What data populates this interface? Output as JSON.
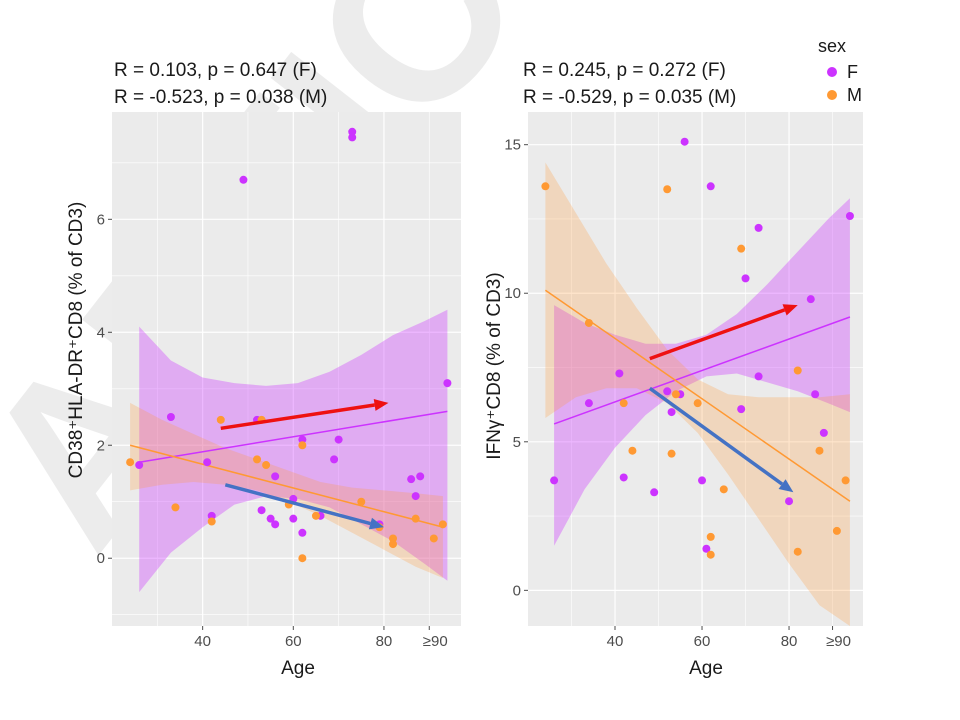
{
  "chart_data": [
    {
      "type": "scatter",
      "title_lines": [
        "R = 0.103, p = 0.647 (F)",
        "R = -0.523, p = 0.038 (M)"
      ],
      "xlabel": "Age",
      "ylabel": "CD38⁺HLA-DR⁺CD8 (% of CD3)",
      "xlim": [
        20,
        97
      ],
      "ylim": [
        -1.2,
        7.9
      ],
      "x_ticks": [
        {
          "value": 40,
          "label": "40"
        },
        {
          "value": 60,
          "label": "60"
        },
        {
          "value": 80,
          "label": "80"
        },
        {
          "value": 90,
          "label": "≥90"
        }
      ],
      "y_ticks": [
        {
          "value": 0,
          "label": "0"
        },
        {
          "value": 2,
          "label": "2"
        },
        {
          "value": 4,
          "label": "4"
        },
        {
          "value": 6,
          "label": "6"
        }
      ],
      "series": [
        {
          "name": "F",
          "color": "#cc33ff",
          "points": [
            [
              26,
              1.65
            ],
            [
              33,
              2.5
            ],
            [
              41,
              1.7
            ],
            [
              42,
              0.75
            ],
            [
              49,
              6.7
            ],
            [
              52,
              2.45
            ],
            [
              53,
              0.85
            ],
            [
              55,
              0.7
            ],
            [
              56,
              1.45
            ],
            [
              56,
              0.6
            ],
            [
              60,
              0.7
            ],
            [
              60,
              1.05
            ],
            [
              62,
              2.1
            ],
            [
              62,
              0.45
            ],
            [
              66,
              0.75
            ],
            [
              69,
              1.75
            ],
            [
              70,
              2.1
            ],
            [
              73,
              7.55
            ],
            [
              73,
              7.45
            ],
            [
              79,
              0.6
            ],
            [
              86,
              1.4
            ],
            [
              87,
              1.1
            ],
            [
              88,
              1.45
            ],
            [
              94,
              3.1
            ]
          ],
          "fit": {
            "x": [
              26,
              94
            ],
            "y": [
              1.7,
              2.6
            ]
          },
          "band": {
            "x": [
              26,
              33,
              40,
              47,
              54,
              61,
              68,
              75,
              82,
              89,
              94
            ],
            "upper": [
              4.1,
              3.5,
              3.2,
              3.1,
              3.05,
              3.1,
              3.3,
              3.6,
              3.95,
              4.2,
              4.4
            ],
            "lower": [
              -0.6,
              0.1,
              0.55,
              0.95,
              1.1,
              1.05,
              0.9,
              0.6,
              0.3,
              -0.1,
              -0.4
            ]
          }
        },
        {
          "name": "M",
          "color": "#ff9933",
          "points": [
            [
              24,
              1.7
            ],
            [
              34,
              0.9
            ],
            [
              42,
              0.65
            ],
            [
              44,
              2.45
            ],
            [
              52,
              1.75
            ],
            [
              53,
              2.45
            ],
            [
              54,
              1.65
            ],
            [
              59,
              0.95
            ],
            [
              62,
              2.0
            ],
            [
              62,
              0.0
            ],
            [
              65,
              0.75
            ],
            [
              75,
              1.0
            ],
            [
              79,
              0.55
            ],
            [
              82,
              0.35
            ],
            [
              82,
              0.25
            ],
            [
              87,
              0.7
            ],
            [
              91,
              0.35
            ],
            [
              93,
              0.6
            ]
          ],
          "fit": {
            "x": [
              24,
              93
            ],
            "y": [
              2.0,
              0.55
            ]
          },
          "band": {
            "x": [
              24,
              31,
              38,
              45,
              52,
              59,
              66,
              73,
              80,
              87,
              93
            ],
            "upper": [
              2.75,
              2.45,
              2.2,
              1.95,
              1.75,
              1.55,
              1.35,
              1.25,
              1.2,
              1.15,
              1.1
            ],
            "lower": [
              1.2,
              1.3,
              1.35,
              1.3,
              1.2,
              1.0,
              0.75,
              0.45,
              0.15,
              -0.15,
              -0.35
            ]
          }
        }
      ],
      "annotations": [
        {
          "type": "arrow",
          "color": "#ee1111",
          "from": [
            44,
            2.3
          ],
          "to": [
            81,
            2.75
          ]
        },
        {
          "type": "arrow",
          "color": "#4472c4",
          "from": [
            45,
            1.3
          ],
          "to": [
            80,
            0.55
          ]
        }
      ]
    },
    {
      "type": "scatter",
      "title_lines": [
        "R = 0.245, p = 0.272 (F)",
        "R = -0.529, p = 0.035 (M)"
      ],
      "xlabel": "Age",
      "ylabel": "IFNγ⁺CD8 (% of CD3)",
      "xlim": [
        20,
        97
      ],
      "ylim": [
        -1.2,
        16.1
      ],
      "x_ticks": [
        {
          "value": 40,
          "label": "40"
        },
        {
          "value": 60,
          "label": "60"
        },
        {
          "value": 80,
          "label": "80"
        },
        {
          "value": 90,
          "label": "≥90"
        }
      ],
      "y_ticks": [
        {
          "value": 0,
          "label": "0"
        },
        {
          "value": 5,
          "label": "5"
        },
        {
          "value": 10,
          "label": "10"
        },
        {
          "value": 15,
          "label": "15"
        }
      ],
      "series": [
        {
          "name": "F",
          "color": "#cc33ff",
          "points": [
            [
              26,
              3.7
            ],
            [
              34,
              6.3
            ],
            [
              41,
              7.3
            ],
            [
              42,
              3.8
            ],
            [
              49,
              3.3
            ],
            [
              52,
              6.7
            ],
            [
              53,
              6.0
            ],
            [
              55,
              6.6
            ],
            [
              56,
              15.1
            ],
            [
              60,
              3.7
            ],
            [
              61,
              1.4
            ],
            [
              62,
              13.6
            ],
            [
              69,
              6.1
            ],
            [
              70,
              10.5
            ],
            [
              73,
              12.2
            ],
            [
              73,
              7.2
            ],
            [
              80,
              3.0
            ],
            [
              85,
              9.8
            ],
            [
              86,
              6.6
            ],
            [
              88,
              5.3
            ],
            [
              94,
              12.6
            ]
          ],
          "fit": {
            "x": [
              26,
              94
            ],
            "y": [
              5.6,
              9.2
            ]
          },
          "band": {
            "x": [
              26,
              33,
              40,
              47,
              54,
              61,
              68,
              75,
              82,
              89,
              94
            ],
            "upper": [
              9.6,
              9.0,
              8.6,
              8.3,
              8.3,
              8.6,
              9.3,
              10.3,
              11.4,
              12.5,
              13.2
            ],
            "lower": [
              1.5,
              3.4,
              4.8,
              5.9,
              6.7,
              7.2,
              7.3,
              7.0,
              6.7,
              6.3,
              6.0
            ]
          }
        },
        {
          "name": "M",
          "color": "#ff9933",
          "points": [
            [
              24,
              13.6
            ],
            [
              34,
              9.0
            ],
            [
              42,
              6.3
            ],
            [
              44,
              4.7
            ],
            [
              52,
              13.5
            ],
            [
              53,
              4.6
            ],
            [
              54,
              6.6
            ],
            [
              59,
              6.3
            ],
            [
              62,
              1.8
            ],
            [
              62,
              1.2
            ],
            [
              65,
              3.4
            ],
            [
              69,
              11.5
            ],
            [
              82,
              7.4
            ],
            [
              82,
              1.3
            ],
            [
              87,
              4.7
            ],
            [
              91,
              2.0
            ],
            [
              93,
              3.7
            ]
          ],
          "fit": {
            "x": [
              24,
              94
            ],
            "y": [
              10.1,
              3.0
            ]
          },
          "band": {
            "x": [
              24,
              31,
              38,
              45,
              52,
              59,
              66,
              73,
              80,
              87,
              94
            ],
            "upper": [
              14.4,
              12.7,
              11.0,
              9.5,
              8.1,
              7.1,
              6.6,
              6.5,
              6.5,
              6.5,
              6.6
            ],
            "lower": [
              5.8,
              6.5,
              6.8,
              6.8,
              6.3,
              5.3,
              3.9,
              2.4,
              0.9,
              -0.5,
              -1.2
            ]
          }
        }
      ],
      "annotations": [
        {
          "type": "arrow",
          "color": "#ee1111",
          "from": [
            48,
            7.8
          ],
          "to": [
            82,
            9.6
          ]
        },
        {
          "type": "arrow",
          "color": "#4472c4",
          "from": [
            48,
            6.8
          ],
          "to": [
            81,
            3.3
          ]
        }
      ]
    }
  ],
  "legend": {
    "title": "sex",
    "items": [
      {
        "label": "F",
        "color": "#cc33ff"
      },
      {
        "label": "M",
        "color": "#ff9933"
      }
    ],
    "position": "top-right"
  },
  "watermark": "ARTICLE"
}
